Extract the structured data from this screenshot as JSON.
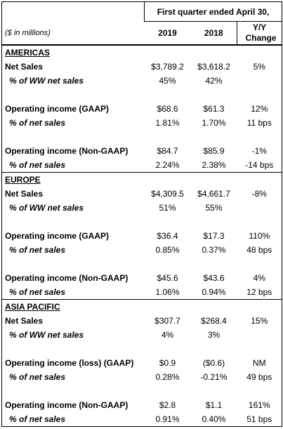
{
  "header": {
    "period": "First quarter ended April 30,",
    "units": "($ in millions)",
    "columns": [
      "2019",
      "2018",
      "Y/Y Change"
    ]
  },
  "sections": [
    {
      "name": "AMERICAS",
      "groups": [
        [
          [
            "Net Sales",
            "$3,789.2",
            "$3,618.2",
            "5%"
          ],
          [
            "% of WW net sales",
            "45%",
            "42%",
            ""
          ]
        ],
        [
          [
            "Operating income (GAAP)",
            "$68.6",
            "$61.3",
            "12%"
          ],
          [
            "% of net sales",
            "1.81%",
            "1.70%",
            "11 bps"
          ]
        ],
        [
          [
            "Operating income (Non-GAAP)",
            "$84.7",
            "$85.9",
            "-1%"
          ],
          [
            "% of net sales",
            "2.24%",
            "2.38%",
            "-14 bps"
          ]
        ]
      ]
    },
    {
      "name": "EUROPE",
      "groups": [
        [
          [
            "Net Sales",
            "$4,309.5",
            "$4,661.7",
            "-8%"
          ],
          [
            "% of WW net sales",
            "51%",
            "55%",
            ""
          ]
        ],
        [
          [
            "Operating income (GAAP)",
            "$36.4",
            "$17.3",
            "110%"
          ],
          [
            "% of net sales",
            "0.85%",
            "0.37%",
            "48 bps"
          ]
        ],
        [
          [
            "Operating income (Non-GAAP)",
            "$45.6",
            "$43.6",
            "4%"
          ],
          [
            "% of net sales",
            "1.06%",
            "0.94%",
            "12 bps"
          ]
        ]
      ]
    },
    {
      "name": "ASIA PACIFIC",
      "groups": [
        [
          [
            "Net Sales",
            "$307.7",
            "$268.4",
            "15%"
          ],
          [
            "% of WW net sales",
            "4%",
            "3%",
            ""
          ]
        ],
        [
          [
            "Operating income (loss) (GAAP)",
            "$0.9",
            "($0.6)",
            "NM"
          ],
          [
            "% of net sales",
            "0.28%",
            "-0.21%",
            "49 bps"
          ]
        ],
        [
          [
            "Operating income (Non-GAAP)",
            "$2.8",
            "$1.1",
            "161%"
          ],
          [
            "% of net sales",
            "0.91%",
            "0.40%",
            "51 bps"
          ]
        ]
      ]
    }
  ]
}
